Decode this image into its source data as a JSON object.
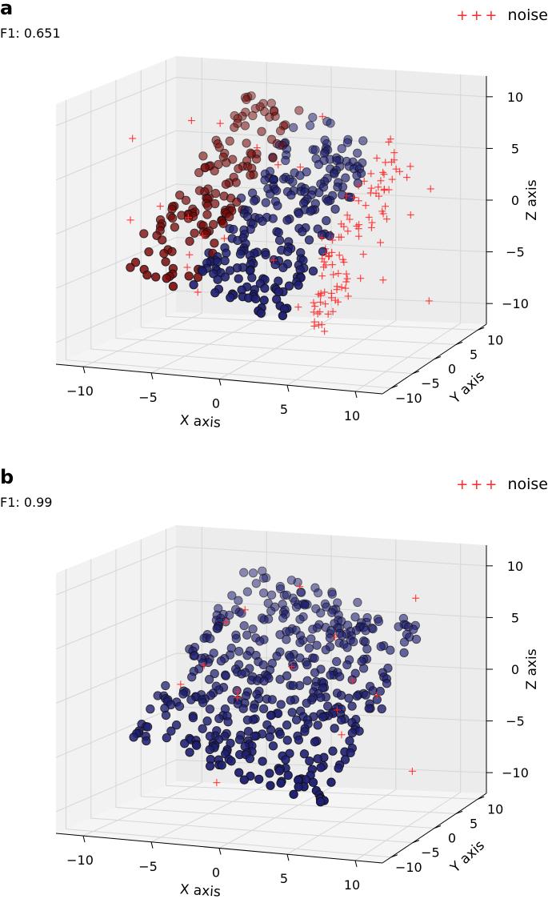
{
  "chart_data": [
    {
      "type": "scatter",
      "panel_label": "a",
      "score": "F1: 0.651",
      "legend": [
        "noise"
      ],
      "xlabel": "X axis",
      "ylabel": "Y axis",
      "zlabel": "Z axis",
      "x_ticks": [
        "−10",
        "−5",
        "0",
        "5",
        "10"
      ],
      "y_ticks": [
        "−10",
        "−5",
        "0",
        "5",
        "10"
      ],
      "z_ticks": [
        "−10",
        "−5",
        "0",
        "5",
        "10"
      ],
      "xlim": [
        -12,
        12
      ],
      "ylim": [
        -12,
        12
      ],
      "zlim": [
        -12,
        12
      ],
      "grid": true,
      "legend_position": "top-right",
      "colors": {
        "cluster_main": "#1f1f73",
        "cluster_red": "#7a0a0a",
        "noise": "#ff2a2a"
      }
    },
    {
      "type": "scatter",
      "panel_label": "b",
      "score": "F1: 0.99",
      "legend": [
        "noise"
      ],
      "xlabel": "X axis",
      "ylabel": "Y axis",
      "zlabel": "Z axis",
      "x_ticks": [
        "−10",
        "−5",
        "0",
        "5",
        "10"
      ],
      "y_ticks": [
        "−10",
        "−5",
        "0",
        "5",
        "10"
      ],
      "z_ticks": [
        "−10",
        "−5",
        "0",
        "5",
        "10"
      ],
      "xlim": [
        -12,
        12
      ],
      "ylim": [
        -12,
        12
      ],
      "zlim": [
        -12,
        12
      ],
      "grid": true,
      "legend_position": "top-right",
      "colors": {
        "cluster_main": "#1f1f73",
        "noise": "#ff2a2a"
      }
    }
  ]
}
